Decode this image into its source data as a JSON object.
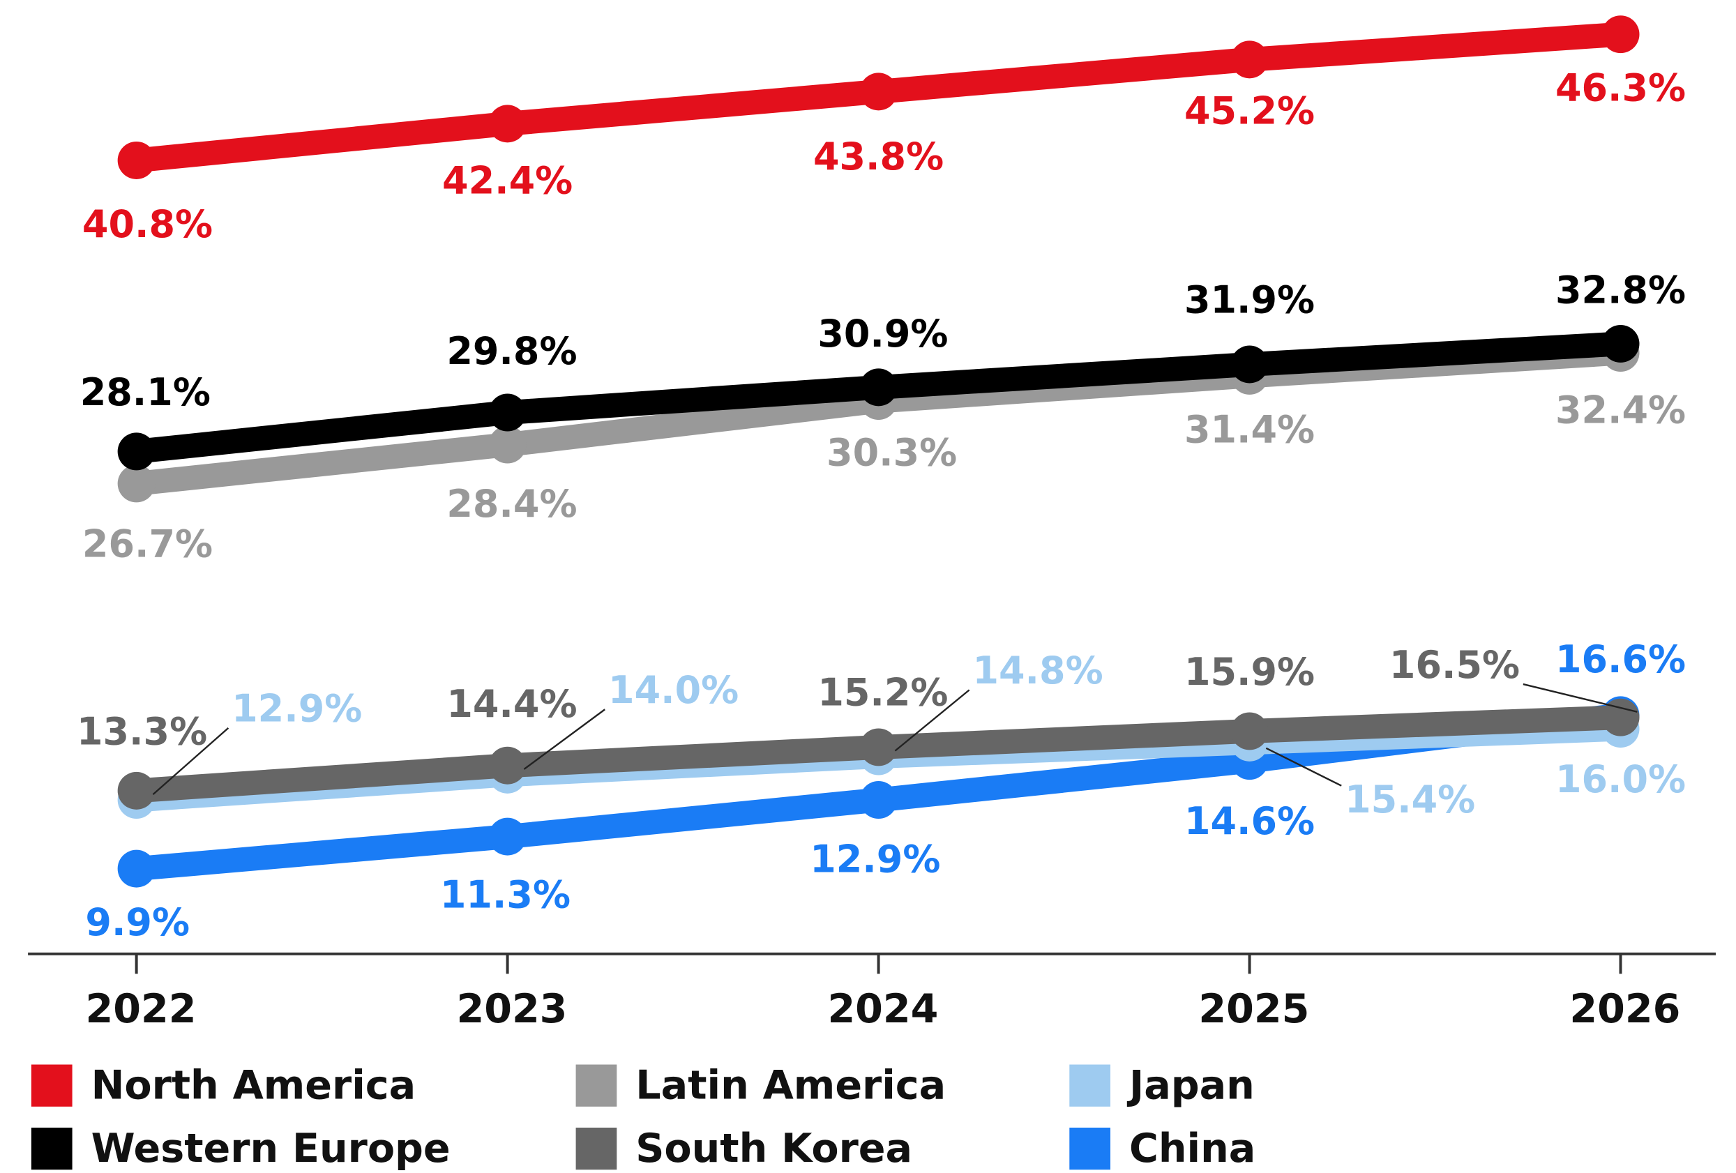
{
  "chart_data": {
    "type": "line",
    "categories": [
      "2022",
      "2023",
      "2024",
      "2025",
      "2026"
    ],
    "series": [
      {
        "name": "North America",
        "color": "#e3101c",
        "values": [
          40.8,
          42.4,
          43.8,
          45.2,
          46.3
        ],
        "value_labels": [
          "40.8%",
          "42.4%",
          "43.8%",
          "45.2%",
          "46.3%"
        ]
      },
      {
        "name": "Latin America",
        "color": "#999999",
        "values": [
          26.7,
          28.4,
          30.3,
          31.4,
          32.4
        ],
        "value_labels": [
          "26.7%",
          "28.4%",
          "30.3%",
          "31.4%",
          "32.4%"
        ]
      },
      {
        "name": "Japan",
        "color": "#9ecbf0",
        "values": [
          12.9,
          14.0,
          14.8,
          15.4,
          16.0
        ],
        "value_labels": [
          "12.9%",
          "14.0%",
          "14.8%",
          "15.4%",
          "16.0%"
        ]
      },
      {
        "name": "Western Europe",
        "color": "#000000",
        "values": [
          28.1,
          29.8,
          30.9,
          31.9,
          32.8
        ],
        "value_labels": [
          "28.1%",
          "29.8%",
          "30.9%",
          "31.9%",
          "32.8%"
        ]
      },
      {
        "name": "South Korea",
        "color": "#666666",
        "values": [
          13.3,
          14.4,
          15.2,
          15.9,
          16.5
        ],
        "value_labels": [
          "13.3%",
          "14.4%",
          "15.2%",
          "15.9%",
          "16.5%"
        ]
      },
      {
        "name": "China",
        "color": "#1a7cf5",
        "values": [
          9.9,
          11.3,
          12.9,
          14.6,
          16.6
        ],
        "value_labels": [
          "9.9%",
          "11.3%",
          "12.9%",
          "14.6%",
          "16.6%"
        ]
      }
    ]
  }
}
